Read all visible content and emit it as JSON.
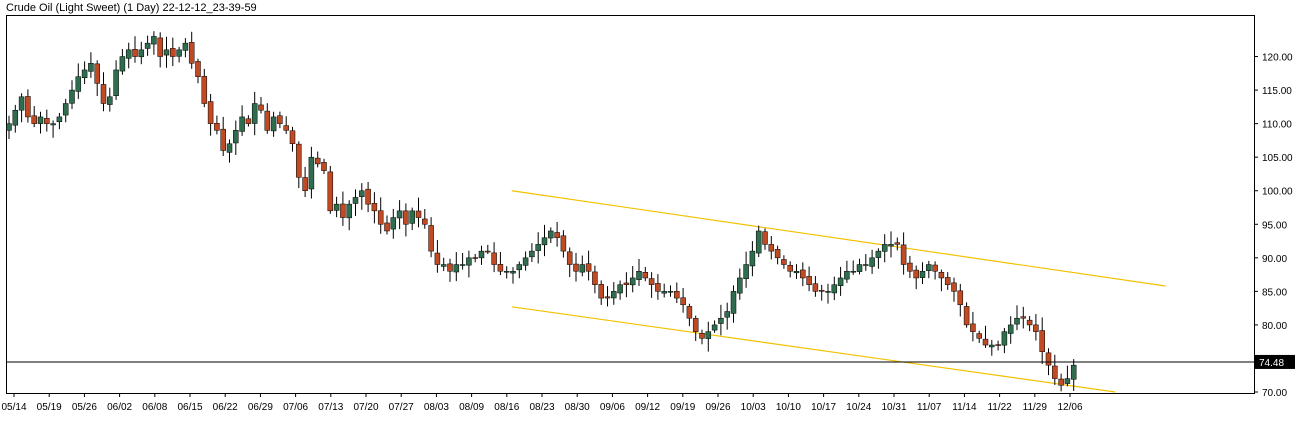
{
  "chart_data": {
    "type": "candlestick",
    "title": "Crude Oil (Light Sweet) (1 Day) 22-12-12_23-39-59",
    "xlabel": "",
    "ylabel": "",
    "ylim": [
      70,
      125
    ],
    "y_ticks": [
      70,
      75,
      80,
      85,
      90,
      95,
      100,
      105,
      110,
      115,
      120
    ],
    "y_tick_labels": [
      "70.00",
      "75.00",
      "80.00",
      "85.00",
      "90.00",
      "95.00",
      "100.00",
      "105.00",
      "110.00",
      "115.00",
      "120.00"
    ],
    "x_tick_labels": [
      "05/14",
      "05/19",
      "05/26",
      "06/02",
      "06/08",
      "06/15",
      "06/22",
      "06/29",
      "07/06",
      "07/13",
      "07/20",
      "07/27",
      "08/03",
      "08/09",
      "08/16",
      "08/23",
      "08/30",
      "09/06",
      "09/12",
      "09/19",
      "09/26",
      "10/03",
      "10/10",
      "10/17",
      "10/24",
      "10/31",
      "11/07",
      "11/14",
      "11/22",
      "11/29",
      "12/06"
    ],
    "current_price": 74.48,
    "current_price_label": "74.48",
    "grid": false,
    "colors": {
      "up": "#2e6e4e",
      "down": "#c04a24",
      "wick": "#000000",
      "channel": "#f2c200",
      "price_line": "#000000"
    },
    "channel_upper": {
      "start": [
        "08/17",
        100.0
      ],
      "end": [
        "12/25",
        85.8
      ]
    },
    "channel_lower": {
      "start": [
        "08/17",
        82.7
      ],
      "end": [
        "12/15",
        70.0
      ]
    },
    "series": [
      {
        "ohlc_close": [
          110,
          112,
          114,
          111,
          110,
          111,
          110,
          110,
          111,
          113,
          115,
          117,
          118,
          119,
          116,
          113,
          114,
          118,
          120,
          121,
          120,
          121,
          122,
          123,
          120,
          121,
          120,
          121,
          122,
          119,
          117,
          113,
          110,
          109,
          106,
          107,
          109,
          111,
          110,
          113,
          112,
          109,
          111,
          110,
          109,
          107,
          102,
          100,
          105,
          104,
          103,
          97,
          98,
          96,
          98,
          99,
          100,
          98,
          97,
          95,
          94,
          96,
          97,
          95,
          97,
          96,
          95,
          91,
          89,
          89,
          88,
          89,
          89,
          90,
          90,
          91,
          91,
          89,
          88,
          88,
          88,
          89,
          90,
          91,
          92,
          93,
          94,
          93,
          91,
          89,
          88,
          89,
          88,
          86,
          84,
          84,
          85,
          86,
          86,
          87,
          88,
          87,
          86,
          85,
          85,
          85,
          84,
          83,
          81,
          79,
          78,
          79,
          80,
          81,
          82,
          85,
          87,
          89,
          91,
          94,
          92,
          91,
          90,
          89,
          88,
          88,
          87,
          86,
          85,
          85,
          85,
          86,
          87,
          88,
          88,
          89,
          89,
          90,
          91,
          92,
          92,
          92,
          89,
          88,
          87,
          88,
          89,
          88,
          87,
          86,
          85,
          83,
          80,
          79,
          78,
          77,
          77,
          77,
          79,
          80,
          81,
          81,
          80,
          79,
          76,
          74,
          72,
          71,
          72,
          74
        ]
      }
    ]
  }
}
